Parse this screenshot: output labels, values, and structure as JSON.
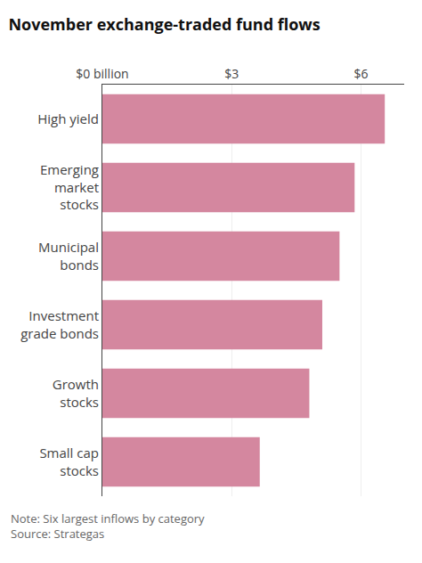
{
  "chart_data": {
    "type": "bar",
    "orientation": "horizontal",
    "title": "November exchange-traded fund flows",
    "categories": [
      "Small cap\nstocks",
      "Growth\nstocks",
      "Investment\ngrade bonds",
      "Municipal\nbonds",
      "Emerging\nmarket\nstocks",
      "High yield"
    ],
    "values": [
      3.65,
      4.8,
      5.1,
      5.5,
      5.85,
      6.55
    ],
    "color": "#d4879f",
    "xlim": [
      0,
      7.0
    ],
    "xticks": [
      {
        "value": 0,
        "label": "$0 billion"
      },
      {
        "value": 3,
        "label": "$3"
      },
      {
        "value": 6,
        "label": "$6"
      }
    ],
    "grid": true,
    "annotations": [
      "Note: Six largest inflows by category",
      "Source: Strategas"
    ]
  }
}
